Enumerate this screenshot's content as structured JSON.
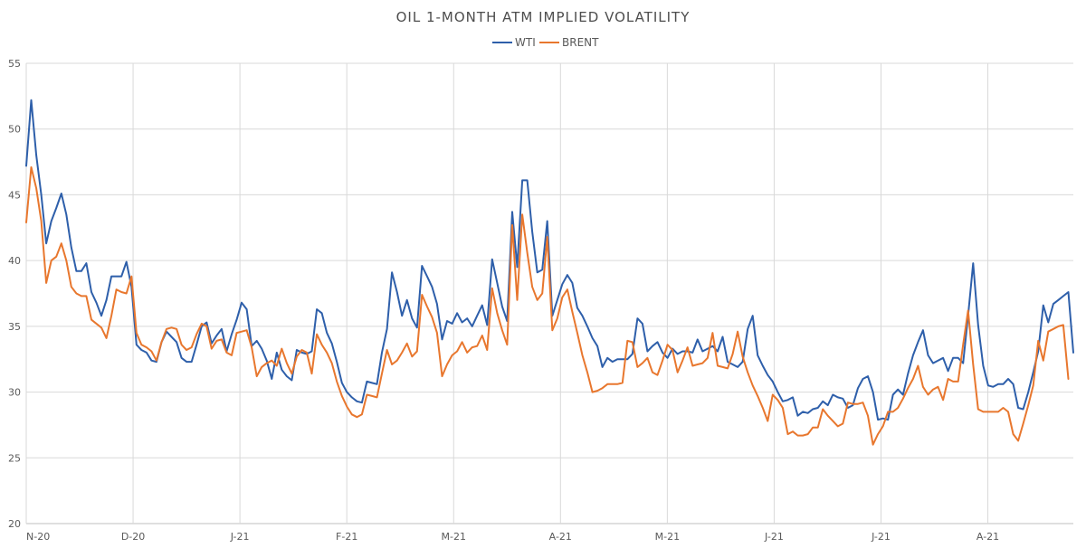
{
  "chart_data": {
    "type": "line",
    "title": "OIL 1-MONTH ATM IMPLIED VOLATILITY",
    "xlabel": "",
    "ylabel": "",
    "ylim": [
      20,
      55
    ],
    "yticks": [
      20,
      25,
      30,
      35,
      40,
      45,
      50,
      55
    ],
    "grid": true,
    "legend_position": "top-center",
    "x_month_labels": [
      "N-20",
      "D-20",
      "J-21",
      "F-21",
      "M-21",
      "A-21",
      "M-21",
      "J-21",
      "J-21",
      "A-21"
    ],
    "series": [
      {
        "name": "WTI",
        "color": "#2e5faa",
        "values": [
          47.2,
          52.2,
          48.0,
          45.0,
          41.3,
          43.0,
          44.0,
          45.1,
          43.5,
          41.0,
          39.2,
          39.2,
          39.8,
          37.6,
          36.8,
          35.8,
          37.0,
          38.8,
          38.8,
          38.8,
          39.9,
          38.0,
          33.6,
          33.2,
          33.0,
          32.4,
          32.3,
          33.8,
          34.6,
          34.2,
          33.8,
          32.6,
          32.3,
          32.3,
          33.6,
          35.0,
          35.3,
          33.7,
          34.3,
          34.8,
          33.1,
          34.4,
          35.5,
          36.8,
          36.3,
          33.5,
          33.9,
          33.3,
          32.4,
          31.0,
          33.0,
          31.7,
          31.2,
          30.9,
          33.2,
          33.0,
          32.9,
          33.1,
          36.3,
          36.0,
          34.5,
          33.7,
          32.3,
          30.7,
          30.0,
          29.6,
          29.3,
          29.2,
          30.8,
          30.7,
          30.6,
          33.0,
          34.8,
          39.1,
          37.6,
          35.8,
          37.0,
          35.6,
          34.9,
          39.6,
          38.8,
          38.0,
          36.7,
          34.0,
          35.4,
          35.2,
          36.0,
          35.3,
          35.6,
          35.0,
          35.8,
          36.6,
          35.1,
          40.1,
          38.3,
          36.5,
          35.4,
          43.7,
          39.5,
          46.1,
          46.1,
          42.2,
          39.1,
          39.3,
          43.0,
          35.8,
          37.0,
          38.2,
          38.9,
          38.3,
          36.4,
          35.8,
          35.0,
          34.1,
          33.5,
          31.9,
          32.6,
          32.3,
          32.5,
          32.5,
          32.5,
          32.9,
          35.6,
          35.2,
          33.1,
          33.5,
          33.8,
          33.0,
          32.6,
          33.3,
          32.9,
          33.1,
          33.1,
          33.0,
          34.0,
          33.1,
          33.3,
          33.5,
          33.1,
          34.2,
          32.3,
          32.1,
          31.9,
          32.3,
          34.8,
          35.8,
          32.8,
          32.0,
          31.3,
          30.8,
          30.0,
          29.3,
          29.4,
          29.6,
          28.2,
          28.5,
          28.4,
          28.7,
          28.8,
          29.3,
          29.0,
          29.8,
          29.6,
          29.5,
          28.8,
          29.0,
          30.3,
          31.0,
          31.2,
          30.0,
          27.9,
          28.0,
          27.9,
          29.8,
          30.2,
          29.8,
          31.4,
          32.8,
          33.8,
          34.7,
          32.8,
          32.2,
          32.4,
          32.6,
          31.6,
          32.6,
          32.6,
          32.2,
          35.8,
          39.8,
          35.1,
          32.0,
          30.5,
          30.4,
          30.6,
          30.6,
          31.0,
          30.6,
          28.8,
          28.7,
          30.0,
          31.5,
          33.1,
          36.6,
          35.3,
          36.7,
          37.0,
          37.3,
          37.6,
          33.0
        ]
      },
      {
        "name": "BRENT",
        "color": "#e8772e",
        "values": [
          42.9,
          47.1,
          45.5,
          43.0,
          38.3,
          40.0,
          40.3,
          41.3,
          40.0,
          38.0,
          37.5,
          37.3,
          37.3,
          35.5,
          35.2,
          34.9,
          34.1,
          35.8,
          37.8,
          37.6,
          37.5,
          38.8,
          34.5,
          33.6,
          33.4,
          33.1,
          32.4,
          33.8,
          34.8,
          34.9,
          34.8,
          33.6,
          33.2,
          33.4,
          34.4,
          35.2,
          35.0,
          33.3,
          33.9,
          34.0,
          33.0,
          32.8,
          34.5,
          34.6,
          34.7,
          33.4,
          31.2,
          31.9,
          32.2,
          32.4,
          32.0,
          33.3,
          32.2,
          31.4,
          32.7,
          33.2,
          33.0,
          31.4,
          34.4,
          33.6,
          33.0,
          32.2,
          30.8,
          29.7,
          28.9,
          28.3,
          28.1,
          28.3,
          29.8,
          29.7,
          29.6,
          31.4,
          33.2,
          32.1,
          32.4,
          33.0,
          33.7,
          32.7,
          33.1,
          37.4,
          36.5,
          35.7,
          34.5,
          31.2,
          32.1,
          32.8,
          33.1,
          33.8,
          33.0,
          33.4,
          33.5,
          34.3,
          33.2,
          37.9,
          36.0,
          34.7,
          33.6,
          42.7,
          37.0,
          43.5,
          40.6,
          38.0,
          37.0,
          37.5,
          41.8,
          34.7,
          35.6,
          37.2,
          37.8,
          36.1,
          34.5,
          32.8,
          31.5,
          30.0,
          30.1,
          30.3,
          30.6,
          30.6,
          30.6,
          30.7,
          33.9,
          33.8,
          31.9,
          32.2,
          32.6,
          31.5,
          31.3,
          32.4,
          33.6,
          33.2,
          31.5,
          32.4,
          33.4,
          32.0,
          32.1,
          32.2,
          32.6,
          34.5,
          32.0,
          31.9,
          31.8,
          32.9,
          34.6,
          32.7,
          31.5,
          30.5,
          29.7,
          28.8,
          27.8,
          29.8,
          29.4,
          28.8,
          26.8,
          27.0,
          26.7,
          26.7,
          26.8,
          27.3,
          27.3,
          28.7,
          28.2,
          27.8,
          27.4,
          27.6,
          29.2,
          29.1,
          29.1,
          29.2,
          28.2,
          26.0,
          26.8,
          27.4,
          28.5,
          28.5,
          28.8,
          29.5,
          30.3,
          31.0,
          32.0,
          30.4,
          29.8,
          30.2,
          30.4,
          29.4,
          31.0,
          30.8,
          30.8,
          33.6,
          36.2,
          32.1,
          28.7,
          28.5,
          28.5,
          28.5,
          28.5,
          28.8,
          28.5,
          26.8,
          26.3,
          27.6,
          29.0,
          30.5,
          33.9,
          32.4,
          34.6,
          34.8,
          35.0,
          35.1,
          31.0
        ]
      }
    ]
  }
}
